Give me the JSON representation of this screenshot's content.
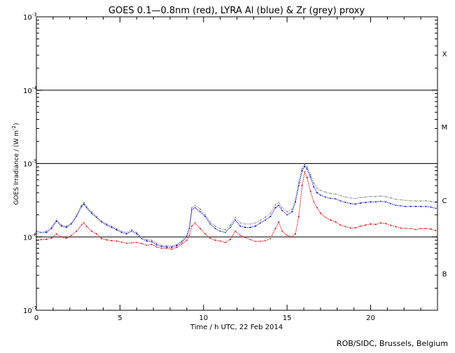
{
  "chart_data": {
    "type": "line",
    "title": "GOES 0.1—0.8nm (red), LYRA Al (blue) & Zr (grey) proxy",
    "xlabel": "Time / h UTC, 22 Feb 2014",
    "ylabel_main": "GOES Irradiance / (W m",
    "ylabel_sup": "-2",
    "ylabel_end": ")",
    "credit": "ROB/SIDC, Brussels, Belgium",
    "xlim": [
      0,
      24
    ],
    "ylim": [
      1e-07,
      0.001
    ],
    "yscale": "log",
    "x_ticks": [
      "0",
      "5",
      "10",
      "15",
      "20"
    ],
    "x_tick_values": [
      0,
      5,
      10,
      15,
      20
    ],
    "y_ticks": [
      {
        "base": "10",
        "exp": "-3",
        "value": 0.001
      },
      {
        "base": "10",
        "exp": "-4",
        "value": 0.0001
      },
      {
        "base": "10",
        "exp": "-5",
        "value": 1e-05
      },
      {
        "base": "10",
        "exp": "-6",
        "value": 1e-06
      },
      {
        "base": "10",
        "exp": "-7",
        "value": 1e-07
      }
    ],
    "flare_levels": [
      0.0001,
      1e-05,
      1e-06
    ],
    "flare_classes": [
      {
        "label": "X",
        "value": 0.000316
      },
      {
        "label": "M",
        "value": 3.16e-05
      },
      {
        "label": "C",
        "value": 3.16e-06
      },
      {
        "label": "B",
        "value": 3.16e-07
      }
    ],
    "series": [
      {
        "name": "red",
        "color": "#dd0000",
        "x": [
          0.0,
          0.3,
          0.6,
          0.9,
          1.2,
          1.5,
          1.8,
          2.1,
          2.4,
          2.7,
          2.85,
          3.0,
          3.3,
          3.6,
          3.9,
          4.2,
          4.5,
          4.8,
          5.1,
          5.4,
          5.7,
          6.0,
          6.3,
          6.6,
          6.9,
          7.2,
          7.5,
          7.8,
          8.1,
          8.4,
          8.7,
          9.0,
          9.15,
          9.3,
          9.5,
          9.8,
          10.1,
          10.4,
          10.7,
          11.0,
          11.3,
          11.6,
          11.9,
          12.2,
          12.5,
          12.8,
          13.1,
          13.4,
          13.7,
          14.0,
          14.3,
          14.5,
          14.7,
          15.0,
          15.3,
          15.5,
          15.7,
          15.9,
          16.05,
          16.2,
          16.4,
          16.6,
          16.8,
          17.0,
          17.3,
          17.6,
          17.9,
          18.2,
          18.5,
          18.8,
          19.1,
          19.4,
          19.7,
          20.0,
          20.3,
          20.6,
          20.9,
          21.2,
          21.5,
          21.8,
          22.1,
          22.4,
          22.7,
          23.0,
          23.3,
          23.6,
          23.9
        ],
        "y": [
          9e-07,
          9.2e-07,
          9.3e-07,
          9.6e-07,
          1.1e-06,
          1e-06,
          9.6e-07,
          1.05e-06,
          1.2e-06,
          1.45e-06,
          1.55e-06,
          1.4e-06,
          1.2e-06,
          1.1e-06,
          9.5e-07,
          9.1e-07,
          8.9e-07,
          8.8e-07,
          8.5e-07,
          8.2e-07,
          8.3e-07,
          8.4e-07,
          8.1e-07,
          7.7e-07,
          7.9e-07,
          7.3e-07,
          7e-07,
          7e-07,
          6.8e-07,
          7.2e-07,
          8e-07,
          9e-07,
          1.05e-06,
          1.4e-06,
          1.55e-06,
          1.3e-06,
          1.1e-06,
          9.6e-07,
          9e-07,
          8.8e-07,
          8.4e-07,
          9.2e-07,
          1.2e-06,
          1.05e-06,
          9.8e-07,
          9.2e-07,
          8.7e-07,
          8.7e-07,
          8.9e-07,
          9.5e-07,
          1.3e-06,
          1.6e-06,
          1.2e-06,
          1.05e-06,
          1e-06,
          1.1e-06,
          1.9e-06,
          5e-06,
          7.6e-06,
          6.4e-06,
          4.2e-06,
          3e-06,
          2.5e-06,
          2.1e-06,
          1.85e-06,
          1.7e-06,
          1.6e-06,
          1.45e-06,
          1.38e-06,
          1.32e-06,
          1.33e-06,
          1.4e-06,
          1.45e-06,
          1.5e-06,
          1.48e-06,
          1.55e-06,
          1.52e-06,
          1.44e-06,
          1.38e-06,
          1.32e-06,
          1.3e-06,
          1.3e-06,
          1.26e-06,
          1.3e-06,
          1.3e-06,
          1.28e-06,
          1.22e-06
        ]
      },
      {
        "name": "blue",
        "color": "#0000cc",
        "x": [
          0.0,
          0.3,
          0.6,
          0.9,
          1.2,
          1.5,
          1.8,
          2.1,
          2.4,
          2.7,
          2.85,
          3.0,
          3.3,
          3.6,
          3.9,
          4.2,
          4.5,
          4.8,
          5.1,
          5.4,
          5.7,
          6.0,
          6.3,
          6.6,
          6.9,
          7.2,
          7.5,
          7.8,
          8.1,
          8.4,
          8.7,
          9.0,
          9.15,
          9.3,
          9.5,
          9.8,
          10.1,
          10.4,
          10.7,
          11.0,
          11.3,
          11.6,
          11.9,
          12.2,
          12.5,
          12.8,
          13.1,
          13.4,
          13.7,
          14.0,
          14.3,
          14.5,
          14.7,
          15.0,
          15.3,
          15.5,
          15.7,
          15.9,
          16.05,
          16.2,
          16.4,
          16.6,
          16.8,
          17.0,
          17.3,
          17.6,
          17.9,
          18.2,
          18.5,
          18.8,
          19.1,
          19.4,
          19.7,
          20.0,
          20.3,
          20.6,
          20.9,
          21.2,
          21.5,
          21.8,
          22.1,
          22.4,
          22.7,
          23.0,
          23.3,
          23.6,
          23.9
        ],
        "y": [
          1.2e-06,
          1.15e-06,
          1.15e-06,
          1.3e-06,
          1.65e-06,
          1.4e-06,
          1.35e-06,
          1.5e-06,
          1.9e-06,
          2.6e-06,
          2.8e-06,
          2.5e-06,
          2.1e-06,
          1.85e-06,
          1.6e-06,
          1.45e-06,
          1.35e-06,
          1.25e-06,
          1.15e-06,
          1.1e-06,
          1.2e-06,
          1.1e-06,
          9.5e-07,
          8.8e-07,
          8.6e-07,
          7.8e-07,
          7.4e-07,
          7.3e-07,
          7.2e-07,
          7.6e-07,
          8.5e-07,
          1e-06,
          1.3e-06,
          2.35e-06,
          2.5e-06,
          2.2e-06,
          1.9e-06,
          1.5e-06,
          1.3e-06,
          1.2e-06,
          1.15e-06,
          1.35e-06,
          1.7e-06,
          1.4e-06,
          1.35e-06,
          1.35e-06,
          1.4e-06,
          1.55e-06,
          1.7e-06,
          1.9e-06,
          2.5e-06,
          2.7e-06,
          2.3e-06,
          2e-06,
          2.2e-06,
          3e-06,
          5e-06,
          8e-06,
          9.2e-06,
          8.4e-06,
          6.5e-06,
          4.8e-06,
          4e-06,
          3.7e-06,
          3.5e-06,
          3.35e-06,
          3.3e-06,
          3.1e-06,
          2.95e-06,
          2.85e-06,
          2.8e-06,
          2.9e-06,
          2.95e-06,
          3e-06,
          3e-06,
          3.05e-06,
          3e-06,
          2.85e-06,
          2.7e-06,
          2.65e-06,
          2.6e-06,
          2.6e-06,
          2.6e-06,
          2.6e-06,
          2.6e-06,
          2.55e-06,
          2.45e-06
        ]
      },
      {
        "name": "grey",
        "color": "#888888",
        "x": [
          0.0,
          0.3,
          0.6,
          0.9,
          1.2,
          1.5,
          1.8,
          2.1,
          2.4,
          2.7,
          2.85,
          3.0,
          3.3,
          3.6,
          3.9,
          4.2,
          4.5,
          4.8,
          5.1,
          5.4,
          5.7,
          6.0,
          6.3,
          6.6,
          6.9,
          7.2,
          7.5,
          7.8,
          8.1,
          8.4,
          8.7,
          9.0,
          9.15,
          9.3,
          9.5,
          9.8,
          10.1,
          10.4,
          10.7,
          11.0,
          11.3,
          11.6,
          11.9,
          12.2,
          12.5,
          12.8,
          13.1,
          13.4,
          13.7,
          14.0,
          14.3,
          14.5,
          14.7,
          15.0,
          15.3,
          15.5,
          15.7,
          15.9,
          16.05,
          16.2,
          16.4,
          16.6,
          16.8,
          17.0,
          17.3,
          17.6,
          17.9,
          18.2,
          18.5,
          18.8,
          19.1,
          19.4,
          19.7,
          20.0,
          20.3,
          20.6,
          20.9,
          21.2,
          21.5,
          21.8,
          22.1,
          22.4,
          22.7,
          23.0,
          23.3,
          23.6,
          23.9
        ],
        "y": [
          1.1e-06,
          1.15e-06,
          1.2e-06,
          1.35e-06,
          1.7e-06,
          1.45e-06,
          1.4e-06,
          1.55e-06,
          2e-06,
          2.7e-06,
          2.95e-06,
          2.6e-06,
          2.2e-06,
          1.9e-06,
          1.65e-06,
          1.5e-06,
          1.4e-06,
          1.3e-06,
          1.2e-06,
          1.15e-06,
          1.25e-06,
          1.15e-06,
          1e-06,
          9.2e-07,
          9e-07,
          8.2e-07,
          7.7e-07,
          7.6e-07,
          7.5e-07,
          7.9e-07,
          8.8e-07,
          1.05e-06,
          1.35e-06,
          2.5e-06,
          2.7e-06,
          2.4e-06,
          2e-06,
          1.6e-06,
          1.4e-06,
          1.3e-06,
          1.25e-06,
          1.45e-06,
          1.85e-06,
          1.55e-06,
          1.5e-06,
          1.5e-06,
          1.55e-06,
          1.7e-06,
          1.85e-06,
          2.1e-06,
          2.75e-06,
          2.95e-06,
          2.5e-06,
          2.2e-06,
          2.4e-06,
          3.3e-06,
          5.5e-06,
          8.6e-06,
          9.8e-06,
          9e-06,
          7e-06,
          5.4e-06,
          4.6e-06,
          4.3e-06,
          4.1e-06,
          3.9e-06,
          3.85e-06,
          3.65e-06,
          3.5e-06,
          3.4e-06,
          3.35e-06,
          3.45e-06,
          3.5e-06,
          3.55e-06,
          3.55e-06,
          3.6e-06,
          3.55e-06,
          3.4e-06,
          3.25e-06,
          3.2e-06,
          3.15e-06,
          3.1e-06,
          3.1e-06,
          3.1e-06,
          3.1e-06,
          3.05e-06,
          2.95e-06
        ]
      }
    ]
  }
}
